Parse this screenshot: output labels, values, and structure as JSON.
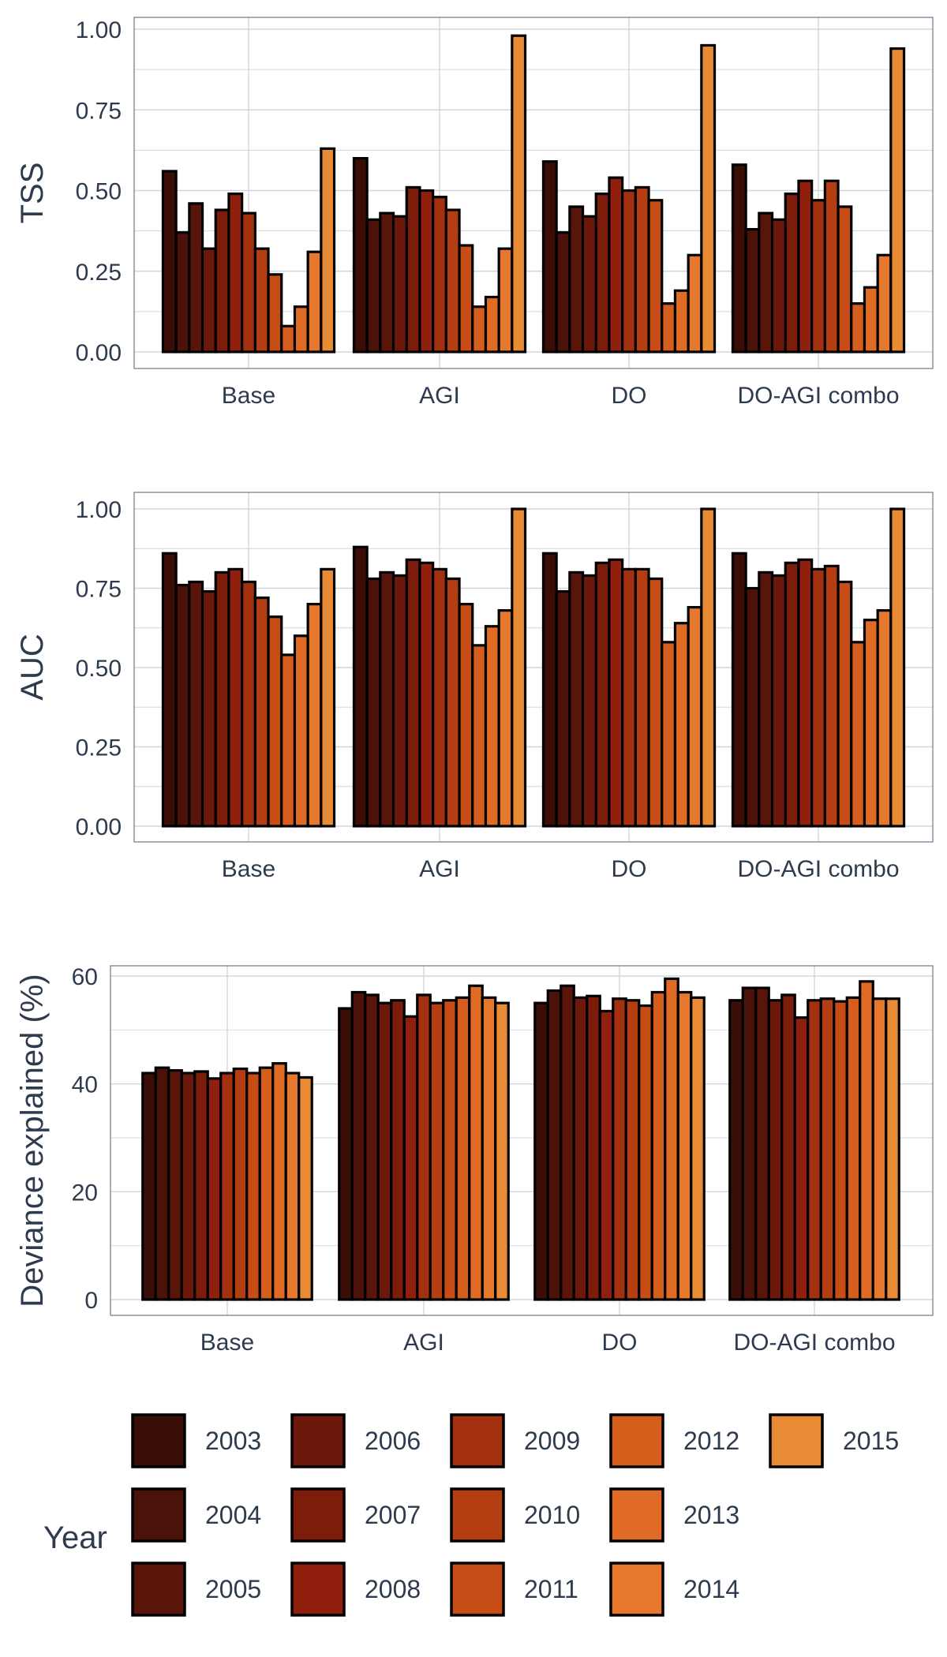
{
  "chart_data": {
    "type": "bar",
    "categories": [
      "Base",
      "AGI",
      "DO",
      "DO-AGI combo"
    ],
    "legend": {
      "title": "Year",
      "position": "bottom",
      "years": [
        "2003",
        "2004",
        "2005",
        "2006",
        "2007",
        "2008",
        "2009",
        "2010",
        "2011",
        "2012",
        "2013",
        "2014",
        "2015"
      ]
    },
    "colors": [
      "#3a0e06",
      "#4a1208",
      "#5a150a",
      "#6c190b",
      "#7e1c0c",
      "#901f0d",
      "#a3300f",
      "#b43d12",
      "#c74c16",
      "#d65e1d",
      "#e06b25",
      "#e5782c",
      "#e98a34"
    ],
    "panels": [
      {
        "ylabel": "TSS",
        "ylim": [
          0,
          1.05
        ],
        "ticks": [
          "0.00",
          "0.25",
          "0.50",
          "0.75",
          "1.00"
        ],
        "tick_values": [
          0,
          0.25,
          0.5,
          0.75,
          1.0
        ],
        "grid": true,
        "values": [
          [
            0.56,
            0.37,
            0.46,
            0.32,
            0.44,
            0.49,
            0.43,
            0.32,
            0.24,
            0.08,
            0.14,
            0.31,
            0.63
          ],
          [
            0.6,
            0.41,
            0.43,
            0.42,
            0.51,
            0.5,
            0.48,
            0.44,
            0.33,
            0.14,
            0.17,
            0.32,
            0.98
          ],
          [
            0.59,
            0.37,
            0.45,
            0.42,
            0.49,
            0.54,
            0.5,
            0.51,
            0.47,
            0.15,
            0.19,
            0.3,
            0.95
          ],
          [
            0.58,
            0.38,
            0.43,
            0.41,
            0.49,
            0.53,
            0.47,
            0.53,
            0.45,
            0.15,
            0.2,
            0.3,
            0.94
          ]
        ]
      },
      {
        "ylabel": "AUC",
        "ylim": [
          0,
          1.05
        ],
        "ticks": [
          "0.00",
          "0.25",
          "0.50",
          "0.75",
          "1.00"
        ],
        "tick_values": [
          0,
          0.25,
          0.5,
          0.75,
          1.0
        ],
        "grid": true,
        "values": [
          [
            0.86,
            0.76,
            0.77,
            0.74,
            0.8,
            0.81,
            0.77,
            0.72,
            0.66,
            0.54,
            0.6,
            0.7,
            0.81
          ],
          [
            0.88,
            0.78,
            0.8,
            0.79,
            0.84,
            0.83,
            0.81,
            0.78,
            0.7,
            0.57,
            0.63,
            0.68,
            1.0
          ],
          [
            0.86,
            0.74,
            0.8,
            0.79,
            0.83,
            0.84,
            0.81,
            0.81,
            0.78,
            0.58,
            0.64,
            0.69,
            1.0
          ],
          [
            0.86,
            0.75,
            0.8,
            0.79,
            0.83,
            0.84,
            0.81,
            0.82,
            0.77,
            0.58,
            0.65,
            0.68,
            1.0
          ]
        ]
      },
      {
        "ylabel": "Deviance explained (%)",
        "ylim": [
          0,
          62
        ],
        "ticks": [
          "0",
          "20",
          "40",
          "60"
        ],
        "tick_values": [
          0,
          20,
          40,
          60
        ],
        "grid": true,
        "values": [
          [
            42.0,
            43.0,
            42.5,
            42.0,
            42.3,
            41.0,
            42.0,
            42.8,
            42.0,
            43.0,
            43.8,
            42.0,
            41.2
          ],
          [
            54.0,
            57.0,
            56.5,
            55.0,
            55.5,
            52.5,
            56.5,
            55.0,
            55.5,
            56.0,
            58.2,
            56.0,
            55.0
          ],
          [
            55.0,
            57.3,
            58.2,
            56.0,
            56.3,
            53.5,
            55.8,
            55.5,
            54.5,
            57.0,
            59.5,
            57.0,
            56.0
          ],
          [
            55.5,
            57.8,
            57.8,
            55.5,
            56.5,
            52.3,
            55.5,
            55.8,
            55.3,
            56.0,
            59.0,
            55.8,
            55.8
          ]
        ]
      }
    ]
  }
}
